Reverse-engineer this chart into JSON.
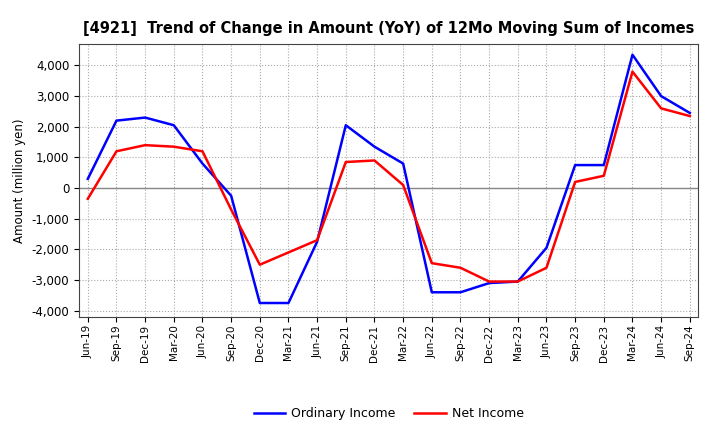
{
  "title": "[4921]  Trend of Change in Amount (YoY) of 12Mo Moving Sum of Incomes",
  "ylabel": "Amount (million yen)",
  "ylim": [
    -4200,
    4700
  ],
  "yticks": [
    -4000,
    -3000,
    -2000,
    -1000,
    0,
    1000,
    2000,
    3000,
    4000
  ],
  "x_labels": [
    "Jun-19",
    "Sep-19",
    "Dec-19",
    "Mar-20",
    "Jun-20",
    "Sep-20",
    "Dec-20",
    "Mar-21",
    "Jun-21",
    "Sep-21",
    "Dec-21",
    "Mar-22",
    "Jun-22",
    "Sep-22",
    "Dec-22",
    "Mar-23",
    "Jun-23",
    "Sep-23",
    "Dec-23",
    "Mar-24",
    "Jun-24",
    "Sep-24"
  ],
  "ordinary_income": [
    300,
    2200,
    2300,
    2050,
    800,
    -250,
    -3750,
    -3750,
    -1750,
    2050,
    1350,
    800,
    -3400,
    -3400,
    -3100,
    -3050,
    -1950,
    750,
    750,
    4350,
    3000,
    2450
  ],
  "net_income": [
    -350,
    1200,
    1400,
    1350,
    1200,
    -700,
    -2500,
    -2100,
    -1700,
    850,
    900,
    100,
    -2450,
    -2600,
    -3050,
    -3050,
    -2600,
    200,
    400,
    3800,
    2600,
    2350
  ],
  "ordinary_color": "#0000ff",
  "net_color": "#ff0000",
  "line_width": 1.8,
  "background_color": "#ffffff",
  "grid_color": "#aaaaaa",
  "zero_line_color": "#888888",
  "legend_ordinary": "Ordinary Income",
  "legend_net": "Net Income"
}
